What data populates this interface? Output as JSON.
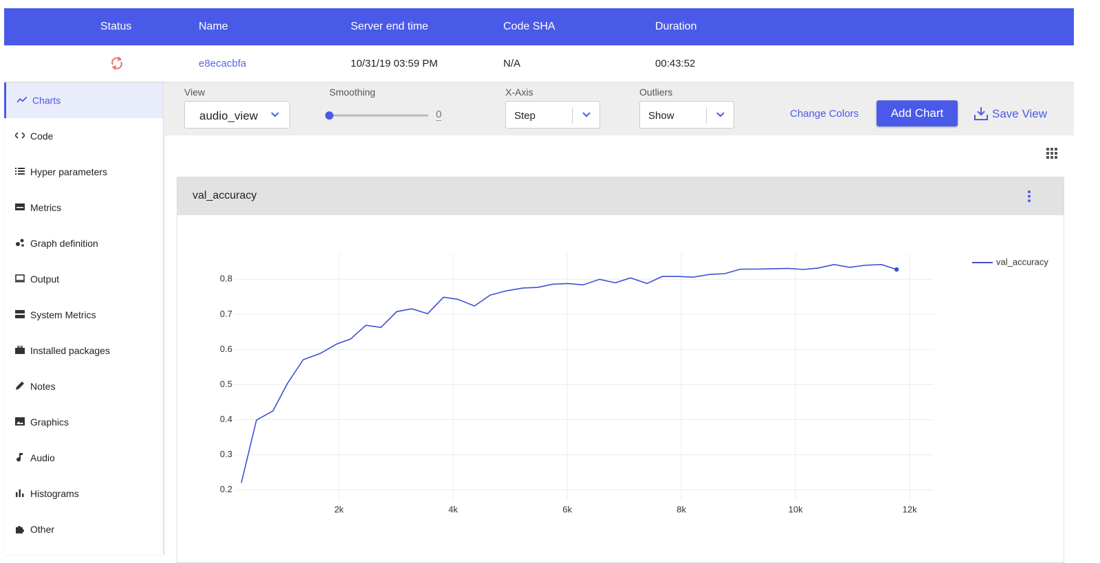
{
  "table": {
    "headers": [
      "Status",
      "Name",
      "Server end time",
      "Code SHA",
      "Duration"
    ],
    "row": {
      "name": "e8ecacbfa",
      "server_end_time": "10/31/19 03:59 PM",
      "code_sha": "N/A",
      "duration": "00:43:52"
    }
  },
  "sidebar": {
    "items": [
      "Charts",
      "Code",
      "Hyper parameters",
      "Metrics",
      "Graph definition",
      "Output",
      "System Metrics",
      "Installed packages",
      "Notes",
      "Graphics",
      "Audio",
      "Histograms",
      "Other"
    ]
  },
  "toolbar": {
    "view": {
      "label": "View",
      "value": "audio_view"
    },
    "smoothing": {
      "label": "Smoothing",
      "value": 0
    },
    "x_axis": {
      "label": "X-Axis",
      "value": "Step"
    },
    "outliers": {
      "label": "Outliers",
      "value": "Show"
    },
    "buttons": {
      "change_colors": "Change Colors",
      "add_chart": "Add Chart",
      "save_view": "Save View"
    }
  },
  "chart_data": {
    "type": "line",
    "title": "val_accuracy",
    "x": [
      289,
      554,
      843,
      1096,
      1373,
      1675,
      1964,
      2205,
      2470,
      2735,
      3012,
      3277,
      3554,
      3831,
      4084,
      4373,
      4651,
      4928,
      5217,
      5482,
      5747,
      6012,
      6277,
      6566,
      6843,
      7108,
      7398,
      7663,
      7940,
      8205,
      8494,
      8759,
      9036,
      9313,
      9602,
      9867,
      10133,
      10398,
      10675,
      10952,
      11217,
      11506,
      11771
    ],
    "series": [
      {
        "name": "val_accuracy",
        "color": "#3d4fd1",
        "values": [
          0.22,
          0.399,
          0.425,
          0.503,
          0.571,
          0.589,
          0.616,
          0.63,
          0.669,
          0.663,
          0.708,
          0.716,
          0.702,
          0.749,
          0.743,
          0.724,
          0.755,
          0.767,
          0.775,
          0.777,
          0.786,
          0.788,
          0.784,
          0.8,
          0.79,
          0.804,
          0.788,
          0.808,
          0.808,
          0.806,
          0.814,
          0.816,
          0.829,
          0.829,
          0.83,
          0.831,
          0.828,
          0.832,
          0.842,
          0.834,
          0.84,
          0.842,
          0.828
        ]
      }
    ],
    "xlim": [
      180,
      12420
    ],
    "ylim": [
      0.17,
      0.875
    ],
    "xticks": [
      {
        "value": 2000,
        "label": "2k"
      },
      {
        "value": 4000,
        "label": "4k"
      },
      {
        "value": 6000,
        "label": "6k"
      },
      {
        "value": 8000,
        "label": "8k"
      },
      {
        "value": 10000,
        "label": "10k"
      },
      {
        "value": 12000,
        "label": "12k"
      }
    ],
    "yticks": [
      0.2,
      0.3,
      0.4,
      0.5,
      0.6,
      0.7,
      0.8
    ],
    "grid": true,
    "legend": "top-right"
  }
}
